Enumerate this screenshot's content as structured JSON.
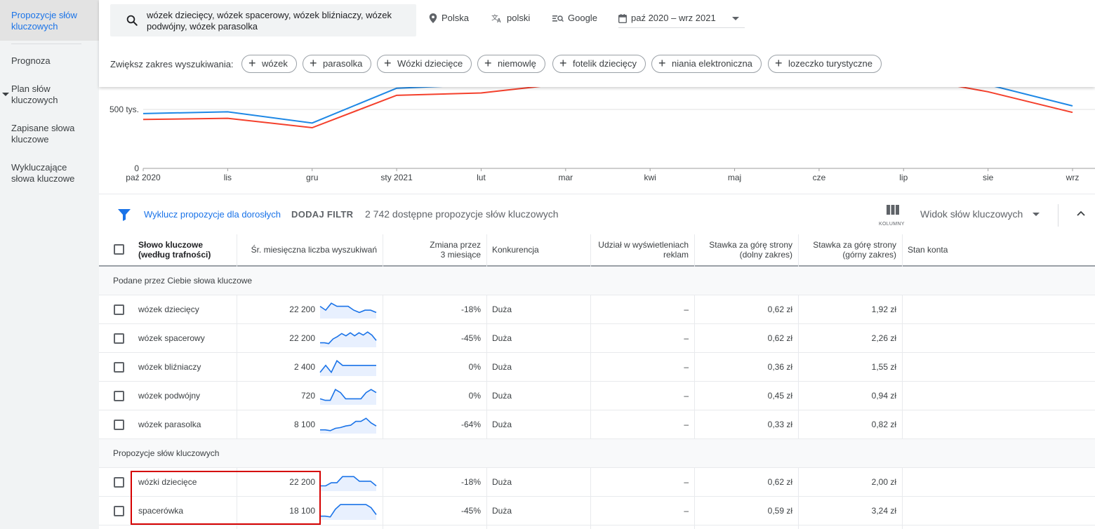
{
  "sidebar": {
    "items": [
      {
        "label": "Propozycje słów kluczowych",
        "active": true
      },
      {
        "label": "Prognoza"
      },
      {
        "label": "Plan słów kluczowych"
      },
      {
        "label": "Zapisane słowa kluczowe"
      },
      {
        "label": "Wykluczające słowa kluczowe"
      }
    ]
  },
  "search": {
    "value": "wózek dziecięcy, wózek spacerowy, wózek bliźniaczy, wózek podwójny, wózek parasolka",
    "location": "Polska",
    "language": "polski",
    "network": "Google",
    "date_range": "paź 2020 – wrz 2021"
  },
  "expand": {
    "label": "Zwiększ zakres wyszukiwania:",
    "chips": [
      "wózek",
      "parasolka",
      "Wózki dziecięce",
      "niemowlę",
      "fotelik dziecięcy",
      "niania elektroniczna",
      "lozeczko turystyczne"
    ]
  },
  "chart_data": {
    "type": "line",
    "categories": [
      "paź 2020",
      "lis",
      "gru",
      "sty 2021",
      "lut",
      "mar",
      "kwi",
      "maj",
      "cze",
      "lip",
      "sie",
      "wrz"
    ],
    "y_tick_labels": [
      "0",
      "500 tys."
    ],
    "ylim": [
      0,
      1000000
    ],
    "series": [
      {
        "color": "#1e88e5",
        "values": [
          465000,
          480000,
          385000,
          680000,
          710000,
          830000,
          810000,
          840000,
          820000,
          850000,
          710000,
          530000
        ]
      },
      {
        "color": "#f4402c",
        "values": [
          415000,
          425000,
          345000,
          620000,
          640000,
          720000,
          700000,
          750000,
          720000,
          780000,
          650000,
          475000
        ]
      }
    ]
  },
  "filter": {
    "exclude_adult": "Wyklucz propozycje dla dorosłych",
    "add_filter": "DODAJ FILTR",
    "count_text": "2 742 dostępne propozycje słów kluczowych",
    "columns_label": "KOLUMNY",
    "view_select": "Widok słów kluczowych"
  },
  "table": {
    "headers": {
      "keyword": "Słowo kluczowe (według trafności)",
      "avg_searches": "Śr. miesięczna liczba wyszukiwań",
      "change": "Zmiana przez 3 miesiące",
      "competition": "Konkurencja",
      "impression_share": "Udział w wyświetleniach reklam",
      "bid_low": "Stawka za górę strony (dolny zakres)",
      "bid_high": "Stawka za górę strony (górny zakres)",
      "account_status": "Stan konta"
    },
    "sections": [
      {
        "title": "Podane przez Ciebie słowa kluczowe",
        "rows": [
          {
            "keyword": "wózek dziecięcy",
            "avg": "22 200",
            "change": "-18%",
            "competition": "Duża",
            "share": "–",
            "low": "0,62 zł",
            "high": "1,92 zł",
            "trend": [
              0.3,
              0.55,
              0.1,
              0.3,
              0.3,
              0.3,
              0.55,
              0.7,
              0.55,
              0.55,
              0.7
            ]
          },
          {
            "keyword": "wózek spacerowy",
            "avg": "22 200",
            "change": "-45%",
            "competition": "Duża",
            "share": "–",
            "low": "0,62 zł",
            "high": "2,26 zł",
            "trend": [
              0.8,
              0.8,
              0.85,
              0.55,
              0.4,
              0.2,
              0.35,
              0.15,
              0.35,
              0.15,
              0.3,
              0.1,
              0.3,
              0.65
            ]
          },
          {
            "keyword": "wózek bliźniaczy",
            "avg": "2 400",
            "change": "0%",
            "competition": "Duża",
            "share": "–",
            "low": "0,36 zł",
            "high": "1,55 zł",
            "trend": [
              0.85,
              0.4,
              0.85,
              0.1,
              0.4,
              0.4,
              0.4,
              0.4,
              0.4,
              0.4,
              0.4
            ]
          },
          {
            "keyword": "wózek podwójny",
            "avg": "720",
            "change": "0%",
            "competition": "Duża",
            "share": "–",
            "low": "0,45 zł",
            "high": "0,94 zł",
            "trend": [
              0.7,
              0.8,
              0.8,
              0.1,
              0.3,
              0.7,
              0.7,
              0.7,
              0.7,
              0.3,
              0.1,
              0.3
            ]
          },
          {
            "keyword": "wózek parasolka",
            "avg": "8 100",
            "change": "-64%",
            "competition": "Duża",
            "share": "–",
            "low": "0,33 zł",
            "high": "0,82 zł",
            "trend": [
              0.85,
              0.85,
              0.9,
              0.75,
              0.7,
              0.6,
              0.55,
              0.3,
              0.3,
              0.1,
              0.4,
              0.6
            ]
          }
        ]
      },
      {
        "title": "Propozycje słów kluczowych",
        "rows": [
          {
            "keyword": "wózki dziecięce",
            "avg": "22 200",
            "change": "-18%",
            "competition": "Duża",
            "share": "–",
            "low": "0,62 zł",
            "high": "2,00 zł",
            "trend": [
              0.75,
              0.75,
              0.55,
              0.55,
              0.15,
              0.15,
              0.15,
              0.45,
              0.45,
              0.45,
              0.75
            ]
          },
          {
            "keyword": "spacerówka",
            "avg": "18 100",
            "change": "-45%",
            "competition": "Duża",
            "share": "–",
            "low": "0,59 zł",
            "high": "3,24 zł",
            "trend": [
              0.85,
              0.85,
              0.9,
              0.4,
              0.1,
              0.1,
              0.1,
              0.1,
              0.1,
              0.1,
              0.3,
              0.75
            ]
          }
        ]
      }
    ]
  }
}
